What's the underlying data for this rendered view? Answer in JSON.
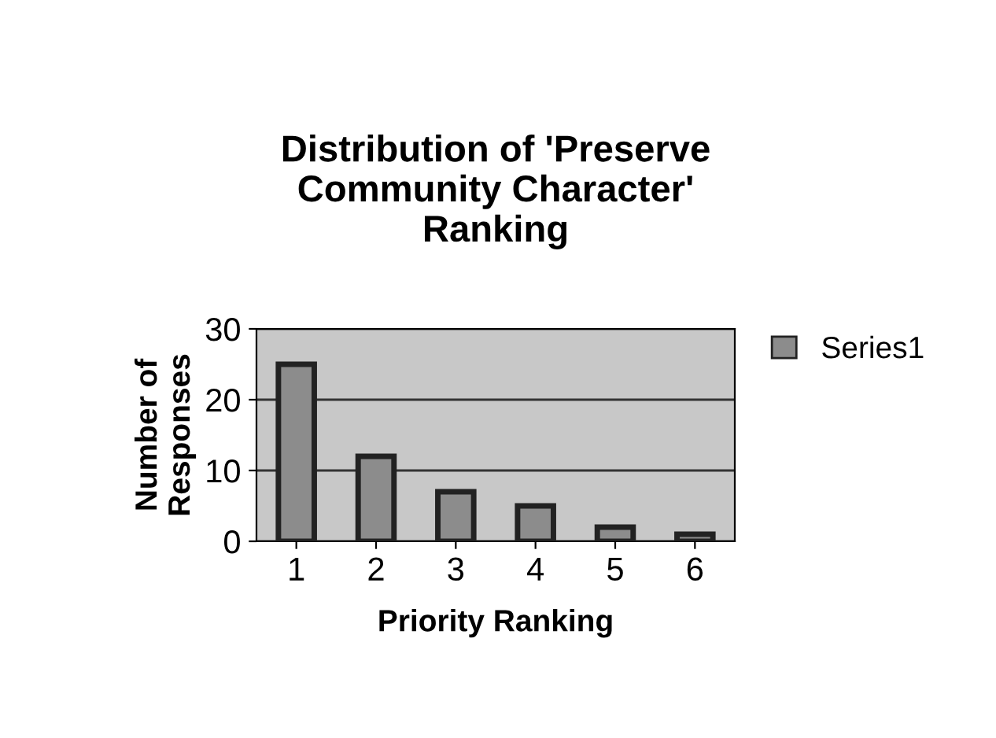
{
  "chart_data": {
    "type": "bar",
    "title": "Distribution of 'Preserve\nCommunity Character'\nRanking",
    "xlabel": "Priority Ranking",
    "ylabel": "Number of\nResponses",
    "categories": [
      "1",
      "2",
      "3",
      "4",
      "5",
      "6"
    ],
    "series": [
      {
        "name": "Series1",
        "color": "#8c8c8c",
        "values": [
          25,
          12,
          7,
          5,
          2,
          1
        ]
      }
    ],
    "ylim": [
      0,
      30
    ],
    "yticks": [
      0,
      10,
      20,
      30
    ],
    "grid": "y",
    "legend": "right"
  }
}
